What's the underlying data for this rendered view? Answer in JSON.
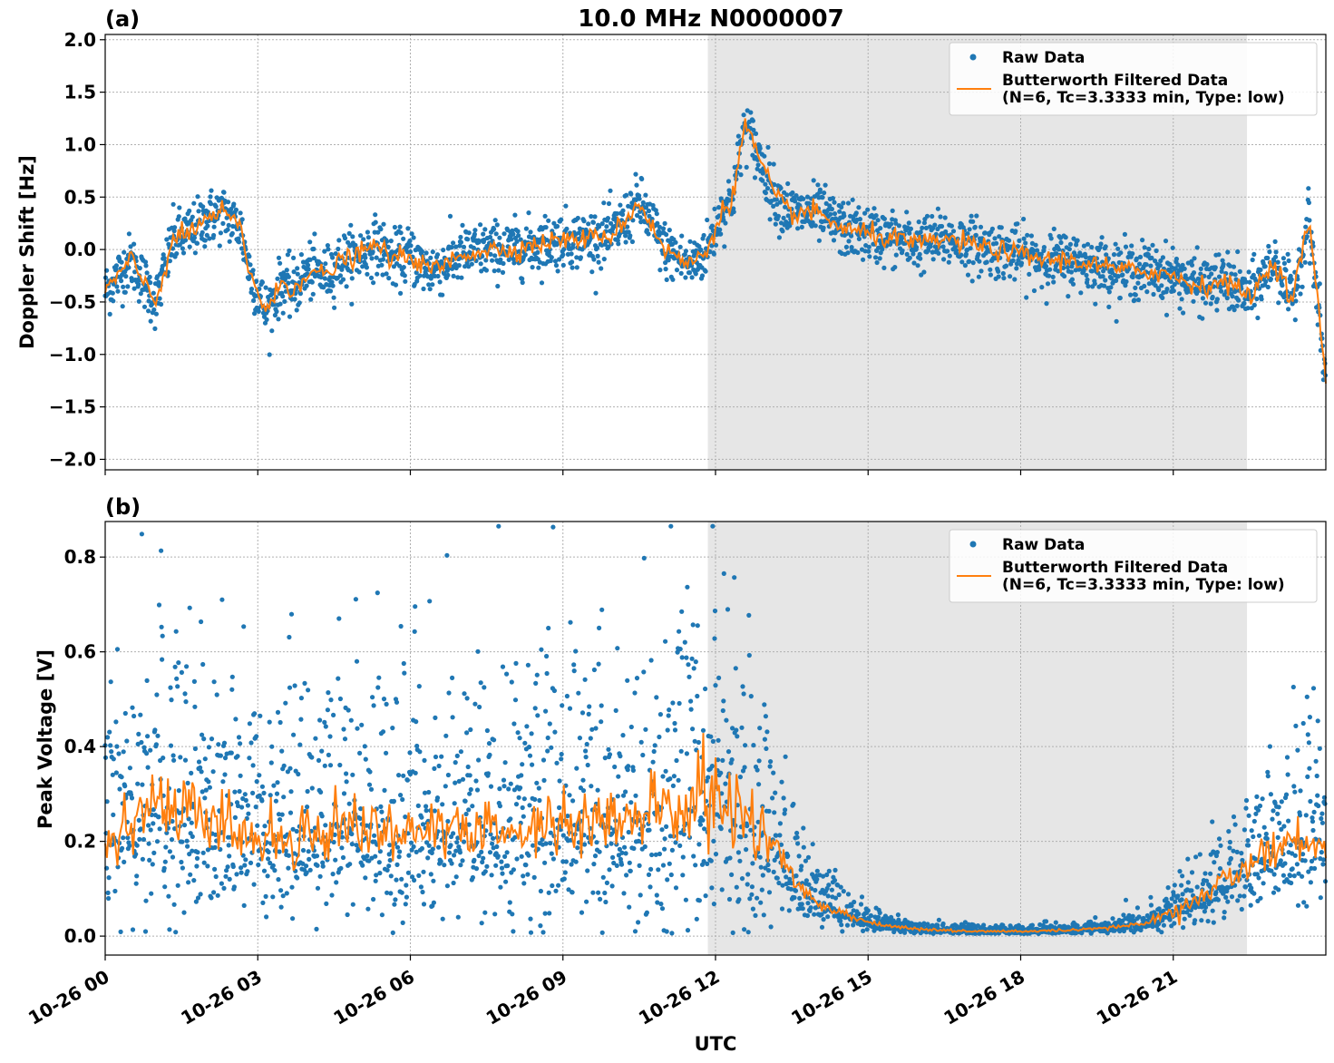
{
  "figure": {
    "title": "10.0 MHz N0000007",
    "xlabel": "UTC"
  },
  "colors": {
    "raw": "#1f77b4",
    "filtered": "#ff7f0e",
    "shade": "#e6e6e6",
    "grid": "#b0b0b0"
  },
  "chart_data": [
    {
      "type": "scatter",
      "panel": "(a)",
      "title": "10.0 MHz N0000007",
      "xlabel": "",
      "ylabel": "Doppler Shift [Hz]",
      "xlim": [
        "2023-10-26 00:00",
        "2023-10-27 00:00"
      ],
      "ylim": [
        -2.1,
        2.05
      ],
      "xticks": [
        "10-26 00",
        "10-26 03",
        "10-26 06",
        "10-26 09",
        "10-26 12",
        "10-26 15",
        "10-26 18",
        "10-26 21"
      ],
      "yticks": [
        2.0,
        1.5,
        1.0,
        0.5,
        0.0,
        -0.5,
        -1.0,
        -1.5,
        -2.0
      ],
      "ytick_labels": [
        "2.0",
        "1.5",
        "1.0",
        "0.5",
        "0.0",
        "−0.5",
        "−1.0",
        "−1.5",
        "−2.0"
      ],
      "grid": true,
      "legend_position": "top-right",
      "shaded_interval": [
        "2023-10-26 11:51",
        "2023-10-26 22:27"
      ],
      "series": [
        {
          "name": "Raw Data",
          "kind": "scatter",
          "x": [
            "00:00",
            "00:30",
            "01:00",
            "01:20",
            "01:40",
            "02:00",
            "02:20",
            "02:40",
            "02:50",
            "03:10",
            "03:30",
            "03:40",
            "04:00",
            "04:20",
            "04:40",
            "05:00",
            "05:20",
            "05:40",
            "06:00",
            "06:20",
            "06:40",
            "07:00",
            "07:30",
            "08:00",
            "08:30",
            "09:00",
            "09:30",
            "10:00",
            "10:30",
            "11:00",
            "11:30",
            "11:50",
            "12:10",
            "12:20",
            "12:35",
            "12:50",
            "13:10",
            "13:30",
            "14:00",
            "14:30",
            "15:00",
            "15:30",
            "16:00",
            "16:30",
            "17:00",
            "17:30",
            "18:00",
            "18:30",
            "19:00",
            "19:30",
            "20:00",
            "20:30",
            "21:00",
            "21:30",
            "22:00",
            "22:30",
            "23:00",
            "23:20",
            "23:40",
            "23:59"
          ],
          "y": [
            -0.4,
            -0.1,
            -0.5,
            0.1,
            0.15,
            0.3,
            0.35,
            0.2,
            -0.2,
            -0.6,
            -0.3,
            -0.4,
            -0.2,
            -0.25,
            -0.1,
            -0.05,
            0.05,
            -0.1,
            -0.05,
            -0.2,
            -0.15,
            -0.05,
            0.0,
            0.0,
            0.05,
            0.1,
            0.1,
            0.15,
            0.45,
            0.0,
            -0.15,
            0.0,
            0.4,
            0.5,
            1.2,
            0.9,
            0.5,
            0.35,
            0.35,
            0.2,
            0.15,
            0.1,
            0.05,
            0.1,
            0.05,
            0.0,
            -0.05,
            -0.1,
            -0.1,
            -0.15,
            -0.2,
            -0.2,
            -0.25,
            -0.35,
            -0.3,
            -0.45,
            -0.1,
            -0.5,
            0.3,
            -1.2
          ],
          "spread": 0.22
        },
        {
          "name": "Butterworth Filtered Data\n(N=6, Tc=3.3333 min, Type: low)",
          "kind": "line",
          "x": [
            "00:00",
            "00:30",
            "01:00",
            "01:20",
            "01:40",
            "02:00",
            "02:20",
            "02:40",
            "02:50",
            "03:10",
            "03:30",
            "03:40",
            "04:00",
            "04:20",
            "04:40",
            "05:00",
            "05:20",
            "05:40",
            "06:00",
            "06:20",
            "06:40",
            "07:00",
            "07:30",
            "08:00",
            "08:30",
            "09:00",
            "09:30",
            "10:00",
            "10:30",
            "11:00",
            "11:30",
            "11:50",
            "12:10",
            "12:20",
            "12:35",
            "12:50",
            "13:10",
            "13:30",
            "14:00",
            "14:30",
            "15:00",
            "15:30",
            "16:00",
            "16:30",
            "17:00",
            "17:30",
            "18:00",
            "18:30",
            "19:00",
            "19:30",
            "20:00",
            "20:30",
            "21:00",
            "21:30",
            "22:00",
            "22:30",
            "23:00",
            "23:20",
            "23:40",
            "23:59"
          ],
          "y": [
            -0.4,
            -0.1,
            -0.5,
            0.1,
            0.15,
            0.3,
            0.35,
            0.2,
            -0.2,
            -0.6,
            -0.3,
            -0.4,
            -0.2,
            -0.25,
            -0.1,
            -0.05,
            0.05,
            -0.1,
            -0.05,
            -0.2,
            -0.15,
            -0.05,
            0.0,
            0.0,
            0.05,
            0.1,
            0.1,
            0.15,
            0.45,
            0.0,
            -0.15,
            0.0,
            0.4,
            0.5,
            1.2,
            0.9,
            0.5,
            0.35,
            0.35,
            0.2,
            0.15,
            0.1,
            0.05,
            0.1,
            0.05,
            0.0,
            -0.05,
            -0.1,
            -0.1,
            -0.15,
            -0.2,
            -0.2,
            -0.25,
            -0.35,
            -0.3,
            -0.45,
            -0.1,
            -0.5,
            0.3,
            -1.2
          ]
        }
      ]
    },
    {
      "type": "scatter",
      "panel": "(b)",
      "xlabel": "UTC",
      "ylabel": "Peak Voltage [V]",
      "xlim": [
        "2023-10-26 00:00",
        "2023-10-27 00:00"
      ],
      "ylim": [
        -0.04,
        0.875
      ],
      "xticks": [
        "10-26 00",
        "10-26 03",
        "10-26 06",
        "10-26 09",
        "10-26 12",
        "10-26 15",
        "10-26 18",
        "10-26 21"
      ],
      "yticks": [
        0.8,
        0.6,
        0.4,
        0.2,
        0.0
      ],
      "ytick_labels": [
        "0.8",
        "0.6",
        "0.4",
        "0.2",
        "0.0"
      ],
      "grid": true,
      "legend_position": "top-right",
      "shaded_interval": [
        "2023-10-26 11:51",
        "2023-10-26 22:27"
      ],
      "series": [
        {
          "name": "Raw Data",
          "kind": "scatter",
          "x": [
            "00:00",
            "01:00",
            "02:00",
            "03:00",
            "04:00",
            "05:00",
            "06:00",
            "07:00",
            "08:00",
            "09:00",
            "10:00",
            "11:00",
            "12:00",
            "12:30",
            "13:00",
            "13:30",
            "14:00",
            "14:30",
            "15:00",
            "15:30",
            "16:00",
            "17:00",
            "18:00",
            "19:00",
            "20:00",
            "20:30",
            "21:00",
            "21:30",
            "22:00",
            "22:30",
            "23:00",
            "23:30",
            "23:59"
          ],
          "y": [
            0.22,
            0.28,
            0.25,
            0.2,
            0.22,
            0.24,
            0.22,
            0.22,
            0.22,
            0.24,
            0.24,
            0.26,
            0.3,
            0.25,
            0.22,
            0.12,
            0.07,
            0.05,
            0.03,
            0.02,
            0.015,
            0.01,
            0.01,
            0.012,
            0.02,
            0.03,
            0.05,
            0.08,
            0.12,
            0.15,
            0.18,
            0.22,
            0.18
          ],
          "spread": [
            0.15,
            0.18,
            0.16,
            0.14,
            0.15,
            0.15,
            0.14,
            0.15,
            0.15,
            0.16,
            0.17,
            0.2,
            0.22,
            0.2,
            0.15,
            0.06,
            0.03,
            0.025,
            0.015,
            0.01,
            0.008,
            0.006,
            0.006,
            0.006,
            0.01,
            0.015,
            0.03,
            0.04,
            0.06,
            0.07,
            0.08,
            0.12,
            0.1
          ]
        },
        {
          "name": "Butterworth Filtered Data\n(N=6, Tc=3.3333 min, Type: low)",
          "kind": "line",
          "x": [
            "00:00",
            "01:00",
            "02:00",
            "03:00",
            "04:00",
            "05:00",
            "06:00",
            "07:00",
            "08:00",
            "09:00",
            "10:00",
            "11:00",
            "12:00",
            "12:30",
            "13:00",
            "13:30",
            "14:00",
            "14:30",
            "15:00",
            "15:30",
            "16:00",
            "17:00",
            "18:00",
            "19:00",
            "20:00",
            "20:30",
            "21:00",
            "21:30",
            "22:00",
            "22:30",
            "23:00",
            "23:30",
            "23:59"
          ],
          "y": [
            0.22,
            0.28,
            0.25,
            0.2,
            0.22,
            0.24,
            0.22,
            0.22,
            0.22,
            0.24,
            0.24,
            0.26,
            0.3,
            0.25,
            0.22,
            0.12,
            0.07,
            0.05,
            0.03,
            0.02,
            0.015,
            0.01,
            0.01,
            0.012,
            0.02,
            0.03,
            0.05,
            0.08,
            0.12,
            0.15,
            0.18,
            0.22,
            0.18
          ]
        }
      ]
    }
  ]
}
